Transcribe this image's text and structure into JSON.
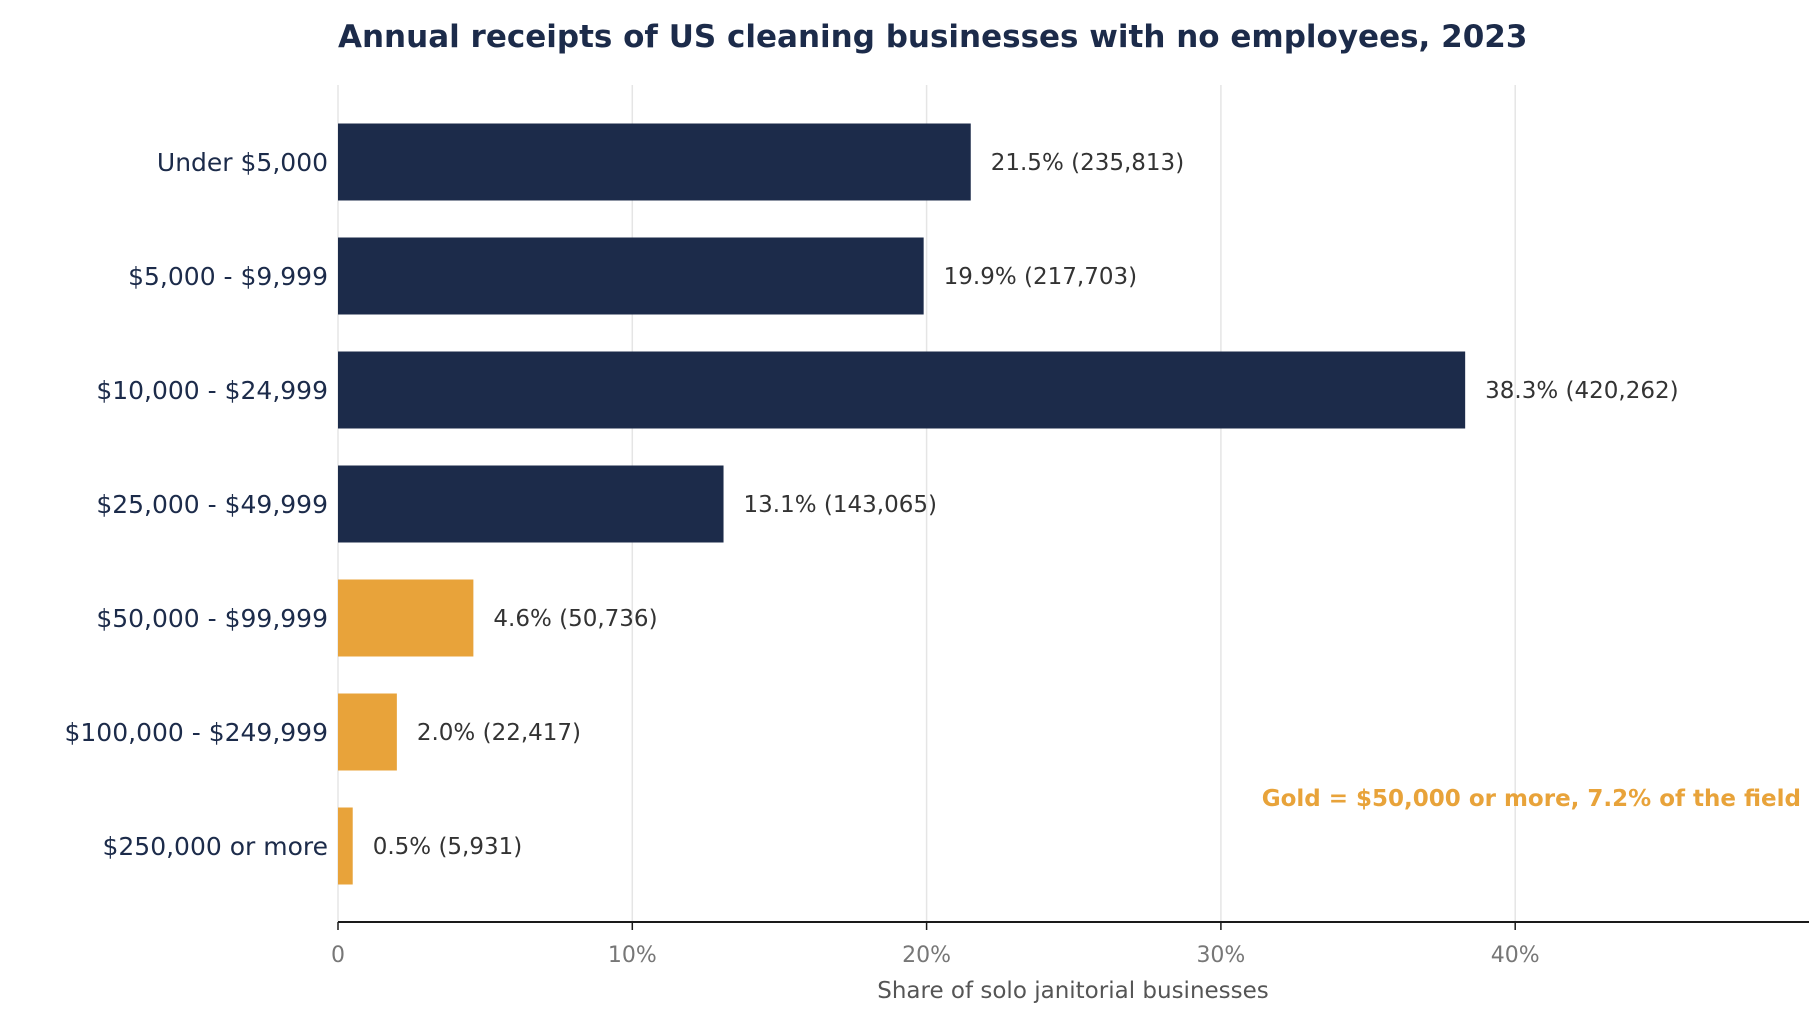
{
  "chart_data": {
    "type": "bar",
    "orientation": "horizontal",
    "title": "Annual receipts of US cleaning businesses with no employees, 2023",
    "xlabel": "Share of solo janitorial businesses",
    "ylabel": "",
    "xlim": [
      0,
      50
    ],
    "x_ticks": [
      0,
      10,
      20,
      30,
      40
    ],
    "x_tick_labels": [
      "0",
      "10%",
      "20%",
      "30%",
      "40%"
    ],
    "grid": "vertical",
    "categories": [
      "Under $5,000",
      "$5,000 - $9,999",
      "$10,000 - $24,999",
      "$25,000 - $49,999",
      "$50,000 - $99,999",
      "$100,000 - $249,999",
      "$250,000 or more"
    ],
    "values": [
      21.5,
      19.9,
      38.3,
      13.1,
      4.6,
      2.0,
      0.5
    ],
    "counts": [
      235813,
      217703,
      420262,
      143065,
      50736,
      22417,
      5931
    ],
    "value_labels": [
      "21.5%  (235,813)",
      "19.9%  (217,703)",
      "38.3%  (420,262)",
      "13.1%  (143,065)",
      "4.6%  (50,736)",
      "2.0%  (22,417)",
      "0.5%  (5,931)"
    ],
    "highlight": [
      false,
      false,
      false,
      false,
      true,
      true,
      true
    ],
    "annotation": "Gold = $50,000 or more, 7.2% of the field",
    "colors": {
      "base": "#1c2b4a",
      "highlight": "#e8a33a",
      "grid": "#e5e5e5",
      "axis": "#1a1a1a"
    }
  }
}
